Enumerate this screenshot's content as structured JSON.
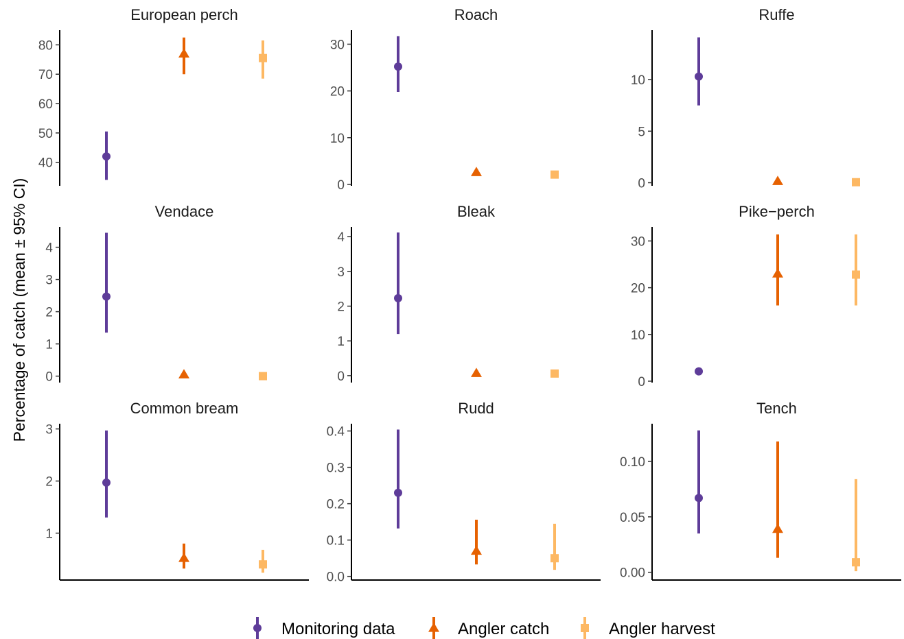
{
  "chart_data": {
    "type": "scatter",
    "ylabel": "Percentage of catch (mean ± 95% CI)",
    "legend_position": "bottom",
    "grid": false,
    "series": [
      {
        "name": "Monitoring data",
        "color": "#5e3c99",
        "shape": "circle"
      },
      {
        "name": "Angler catch",
        "color": "#e66101",
        "shape": "triangle"
      },
      {
        "name": "Angler harvest",
        "color": "#fdb863",
        "shape": "square"
      }
    ],
    "panels": [
      {
        "title": "European perch",
        "ylim": [
          32,
          85
        ],
        "ticks": [
          "40",
          "50",
          "60",
          "70",
          "80"
        ],
        "points": [
          {
            "mean": 42,
            "lo": 34,
            "hi": 50.5
          },
          {
            "mean": 77,
            "lo": 70,
            "hi": 82.5
          },
          {
            "mean": 75.5,
            "lo": 68.5,
            "hi": 81.5
          }
        ]
      },
      {
        "title": "Roach",
        "ylim": [
          -0.3,
          33
        ],
        "ticks": [
          "0",
          "10",
          "20",
          "30"
        ],
        "points": [
          {
            "mean": 25.2,
            "lo": 19.8,
            "hi": 31.7
          },
          {
            "mean": 2.6,
            "lo": 2.4,
            "hi": 2.8
          },
          {
            "mean": 2.1,
            "lo": 1.9,
            "hi": 2.3
          }
        ]
      },
      {
        "title": "Ruffe",
        "ylim": [
          -0.3,
          14.8
        ],
        "ticks": [
          "0",
          "5",
          "10"
        ],
        "points": [
          {
            "mean": 10.3,
            "lo": 7.5,
            "hi": 14.1
          },
          {
            "mean": 0.15,
            "lo": 0.1,
            "hi": 0.2
          },
          {
            "mean": 0.05,
            "lo": 0,
            "hi": 0.1
          }
        ]
      },
      {
        "title": "Vendace",
        "ylim": [
          -0.2,
          4.63
        ],
        "ticks": [
          "0",
          "1",
          "2",
          "3",
          "4"
        ],
        "points": [
          {
            "mean": 2.47,
            "lo": 1.35,
            "hi": 4.45
          },
          {
            "mean": 0.05,
            "lo": 0,
            "hi": 0.1
          },
          {
            "mean": 0,
            "lo": 0,
            "hi": 0
          }
        ]
      },
      {
        "title": "Bleak",
        "ylim": [
          -0.2,
          4.28
        ],
        "ticks": [
          "0",
          "1",
          "2",
          "3",
          "4"
        ],
        "points": [
          {
            "mean": 2.23,
            "lo": 1.2,
            "hi": 4.12
          },
          {
            "mean": 0.07,
            "lo": 0.03,
            "hi": 0.1
          },
          {
            "mean": 0.06,
            "lo": 0.02,
            "hi": 0.09
          }
        ]
      },
      {
        "title": "Pike−perch",
        "ylim": [
          -0.3,
          33
        ],
        "ticks": [
          "0",
          "10",
          "20",
          "30"
        ],
        "points": [
          {
            "mean": 2.1,
            "lo": 1.6,
            "hi": 2.6
          },
          {
            "mean": 23,
            "lo": 16.2,
            "hi": 31.4
          },
          {
            "mean": 22.8,
            "lo": 16.2,
            "hi": 31.4
          }
        ]
      },
      {
        "title": "Common bream",
        "ylim": [
          0.1,
          3.1
        ],
        "ticks": [
          "1",
          "2",
          "3"
        ],
        "points": [
          {
            "mean": 1.97,
            "lo": 1.3,
            "hi": 2.97
          },
          {
            "mean": 0.52,
            "lo": 0.32,
            "hi": 0.8
          },
          {
            "mean": 0.4,
            "lo": 0.24,
            "hi": 0.68
          }
        ]
      },
      {
        "title": "Rudd",
        "ylim": [
          -0.01,
          0.42
        ],
        "ticks": [
          "0.0",
          "0.1",
          "0.2",
          "0.3",
          "0.4"
        ],
        "points": [
          {
            "mean": 0.23,
            "lo": 0.132,
            "hi": 0.404
          },
          {
            "mean": 0.07,
            "lo": 0.033,
            "hi": 0.156
          },
          {
            "mean": 0.05,
            "lo": 0.018,
            "hi": 0.145
          }
        ]
      },
      {
        "title": "Tench",
        "ylim": [
          -0.007,
          0.134
        ],
        "ticks": [
          "0.00",
          "0.05",
          "0.10"
        ],
        "points": [
          {
            "mean": 0.067,
            "lo": 0.035,
            "hi": 0.128
          },
          {
            "mean": 0.039,
            "lo": 0.013,
            "hi": 0.118
          },
          {
            "mean": 0.009,
            "lo": 0.001,
            "hi": 0.084
          }
        ]
      }
    ]
  }
}
